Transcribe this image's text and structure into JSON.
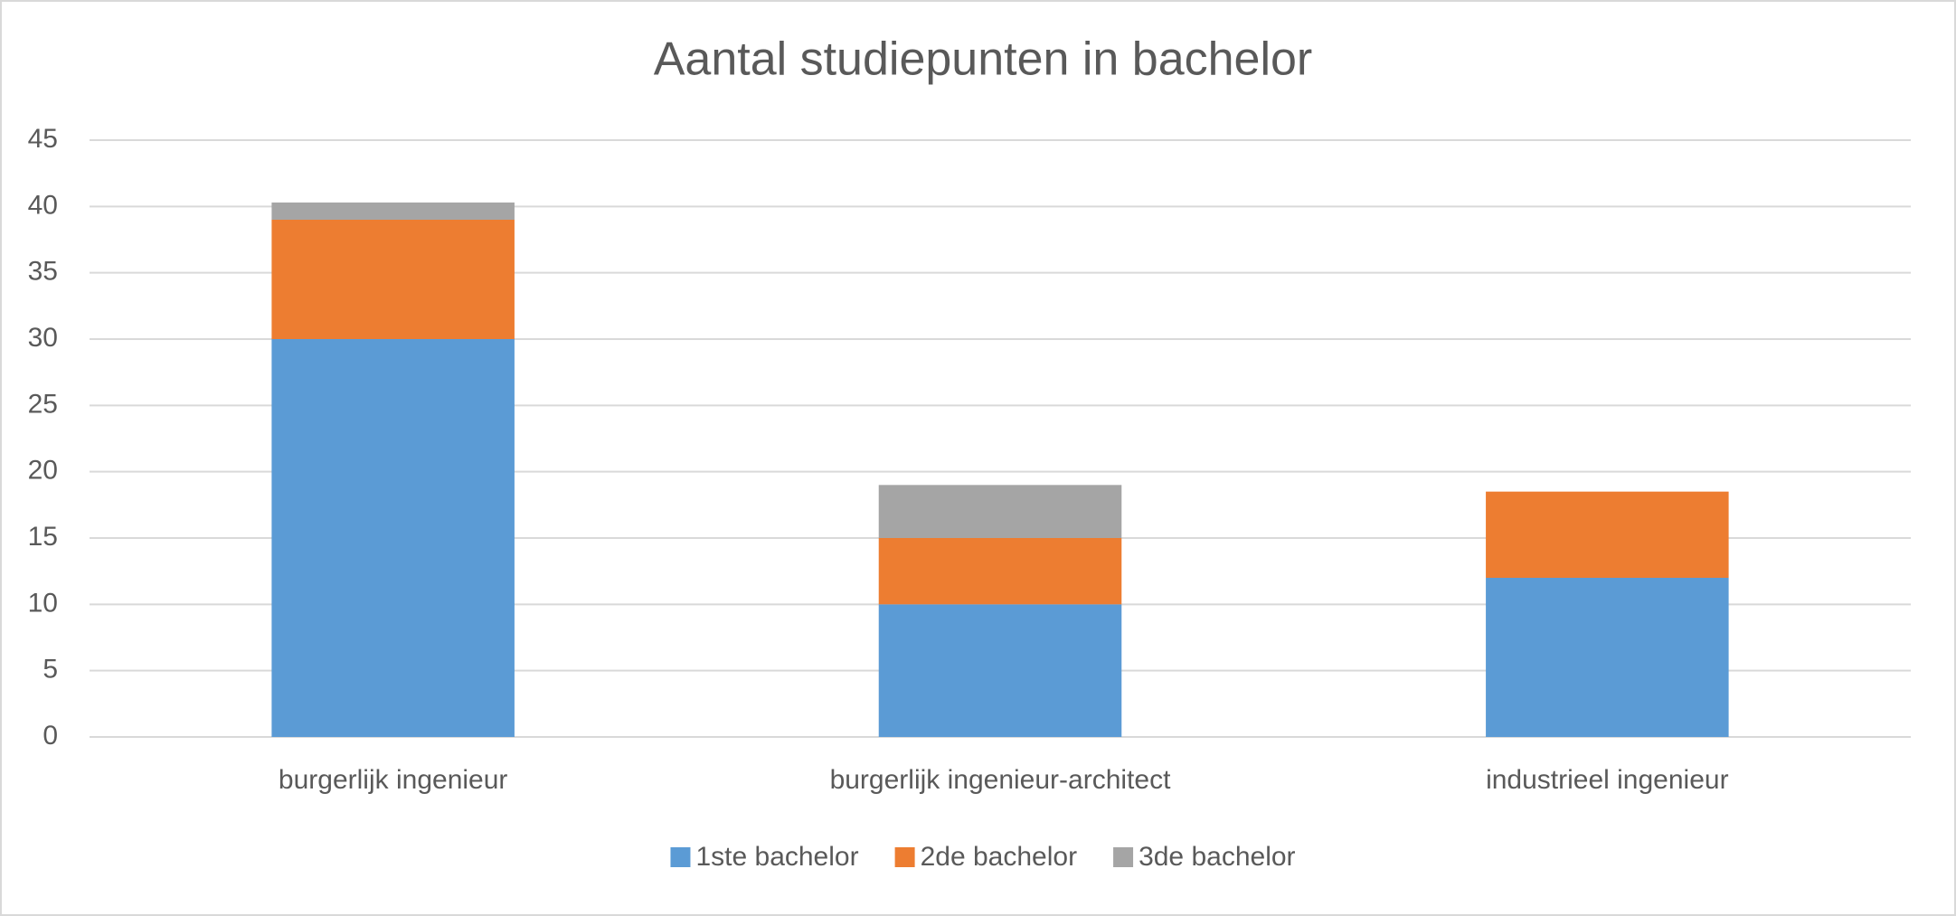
{
  "chart_data": {
    "type": "stacked_bar",
    "title": "Aantal studiepunten in bachelor",
    "categories": [
      "burgerlijk ingenieur",
      "burgerlijk ingenieur-architect",
      "industrieel ingenieur"
    ],
    "series": [
      {
        "name": "1ste bachelor",
        "color": "#5b9bd5",
        "values": [
          30,
          10,
          12
        ]
      },
      {
        "name": "2de bachelor",
        "color": "#ed7d31",
        "values": [
          9,
          5,
          6.5
        ]
      },
      {
        "name": "3de bachelor",
        "color": "#a5a5a5",
        "values": [
          1.3,
          4,
          0
        ]
      }
    ],
    "ylim": [
      0,
      45
    ],
    "yticks": [
      0,
      5,
      10,
      15,
      20,
      25,
      30,
      35,
      40,
      45
    ],
    "grid": true,
    "legend": "bottom"
  }
}
